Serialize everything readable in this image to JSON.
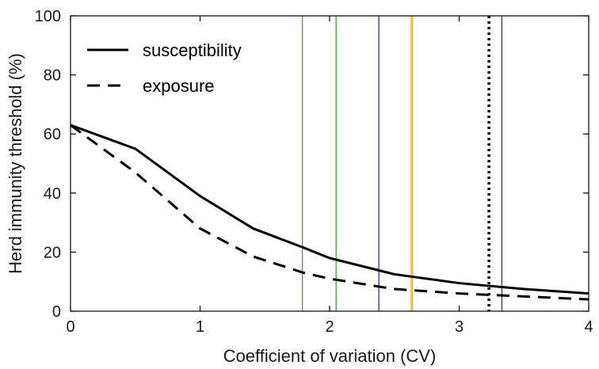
{
  "chart_data": {
    "type": "line",
    "xlabel": "Coefficient of variation (CV)",
    "ylabel": "Herd immunity threshold (%)",
    "xlim": [
      0,
      4
    ],
    "ylim": [
      0,
      100
    ],
    "x_ticks": [
      0,
      1,
      2,
      3,
      4
    ],
    "y_ticks": [
      0,
      20,
      40,
      60,
      80,
      100
    ],
    "grid": false,
    "legend_position": "top-left",
    "series": [
      {
        "name": "susceptibility",
        "style": "solid",
        "color": "#000000",
        "x": [
          0,
          0.5,
          1.0,
          1.41,
          1.8,
          2.0,
          2.5,
          3.0,
          3.5,
          4.0
        ],
        "y": [
          63,
          55,
          39,
          28,
          21.5,
          18,
          12.5,
          9.5,
          7.5,
          6
        ]
      },
      {
        "name": "exposure",
        "style": "dashed",
        "color": "#000000",
        "x": [
          0,
          0.5,
          1.0,
          1.41,
          1.8,
          2.0,
          2.5,
          3.0,
          3.5,
          4.0
        ],
        "y": [
          63,
          47,
          28,
          18.5,
          13,
          11,
          7.5,
          6,
          5,
          4
        ]
      }
    ],
    "vertical_lines": [
      {
        "x": 1.79,
        "color": "#2ca02c",
        "style": "solid"
      },
      {
        "x": 2.05,
        "color": "#2ca02c",
        "style": "solid"
      },
      {
        "x": 2.38,
        "color": "#1f1fbf",
        "style": "solid"
      },
      {
        "x": 2.63,
        "color": "#e6a020",
        "style": "solid"
      },
      {
        "x": 2.64,
        "color": "#d9b020",
        "style": "solid"
      },
      {
        "x": 3.23,
        "color": "#000000",
        "style": "dotted"
      },
      {
        "x": 3.33,
        "color": "#1f1fbf",
        "style": "solid"
      }
    ]
  }
}
